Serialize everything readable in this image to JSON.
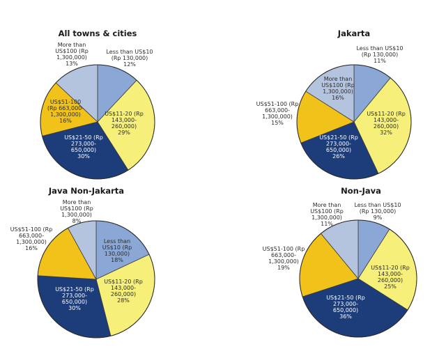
{
  "chart_data": [
    {
      "type": "pie",
      "title": "All towns & cities",
      "slices": [
        {
          "label": [
            "Less than US$10",
            "(Rp 130,000)"
          ],
          "value": 12,
          "color": "#8ba7d6"
        },
        {
          "label": [
            "US$11-20 (Rp",
            "143,000-",
            "260,000)"
          ],
          "value": 29,
          "color": "#f6f07a"
        },
        {
          "label": [
            "US$21-50 (Rp",
            "273,000-",
            "650,000)"
          ],
          "value": 30,
          "color": "#1c3c7a"
        },
        {
          "label": [
            "US$51-100",
            "(Rp 663,000-",
            "1,300,000)"
          ],
          "value": 16,
          "color": "#f0c21a"
        },
        {
          "label": [
            "More than",
            "US$100 (Rp",
            "1,300,000)"
          ],
          "value": 13,
          "color": "#b5c4de"
        }
      ]
    },
    {
      "type": "pie",
      "title": "Jakarta",
      "slices": [
        {
          "label": [
            "Less than US$10",
            "(Rp 130,000)"
          ],
          "value": 11,
          "color": "#8ba7d6"
        },
        {
          "label": [
            "US$11-20 (Rp",
            "143,000-",
            "260,000)"
          ],
          "value": 32,
          "color": "#f6f07a"
        },
        {
          "label": [
            "US$21-50 (Rp",
            "273,000-",
            "650,000)"
          ],
          "value": 26,
          "color": "#1c3c7a"
        },
        {
          "label": [
            "US$51-100 (Rp",
            "663,000-",
            "1,300,000)"
          ],
          "value": 15,
          "color": "#f0c21a"
        },
        {
          "label": [
            "More than",
            "US$100 (Rp",
            "1,300,000)"
          ],
          "value": 16,
          "color": "#b5c4de"
        }
      ]
    },
    {
      "type": "pie",
      "title": "Java Non-Jakarta",
      "slices": [
        {
          "label": [
            "Less than",
            "US$10 (Rp",
            "130,000)"
          ],
          "value": 18,
          "color": "#8ba7d6"
        },
        {
          "label": [
            "US$11-20 (Rp",
            "143,000-",
            "260,000)"
          ],
          "value": 28,
          "color": "#f6f07a"
        },
        {
          "label": [
            "US$21-50 (Rp",
            "273,000-",
            "650,000)"
          ],
          "value": 30,
          "color": "#1c3c7a"
        },
        {
          "label": [
            "US$51-100 (Rp",
            "663,000-",
            "1,300,000)"
          ],
          "value": 16,
          "color": "#f0c21a"
        },
        {
          "label": [
            "More than",
            "US$100 (Rp",
            "1,300,000)"
          ],
          "value": 8,
          "color": "#b5c4de"
        }
      ]
    },
    {
      "type": "pie",
      "title": "Non-Java",
      "slices": [
        {
          "label": [
            "Less than US$10",
            "(Rp 130,000)"
          ],
          "value": 9,
          "color": "#8ba7d6"
        },
        {
          "label": [
            "US$11-20 (Rp",
            "143,000-",
            "260,000)"
          ],
          "value": 25,
          "color": "#f6f07a"
        },
        {
          "label": [
            "US$21-50 (Rp",
            "273,000-",
            "650,000)"
          ],
          "value": 36,
          "color": "#1c3c7a"
        },
        {
          "label": [
            "US$51-100 (Rp",
            "663,000-",
            "1,300,000)"
          ],
          "value": 19,
          "color": "#f0c21a"
        },
        {
          "label": [
            "More than",
            "US$100 (Rp",
            "1,300,000)"
          ],
          "value": 11,
          "color": "#b5c4de"
        }
      ]
    }
  ]
}
